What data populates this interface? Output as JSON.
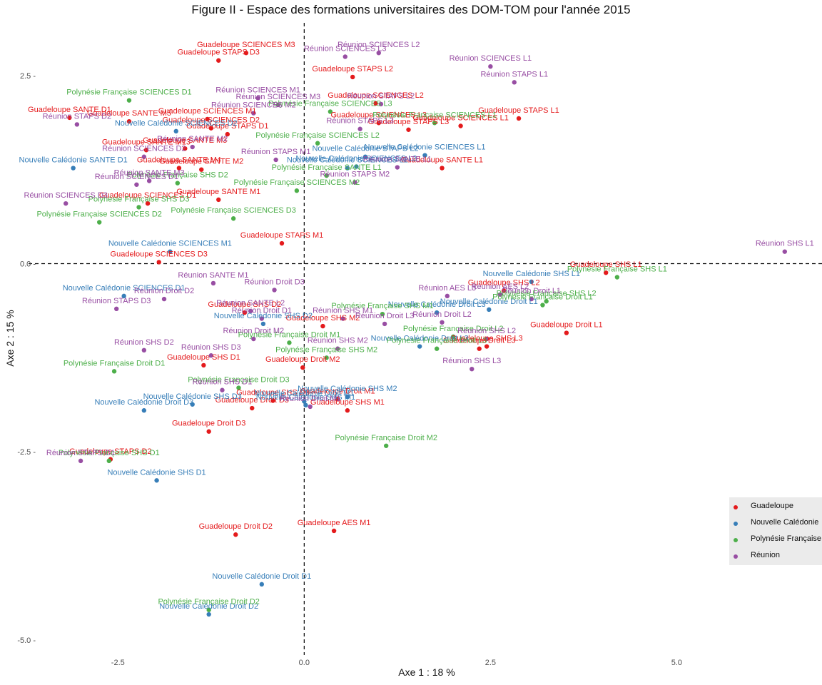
{
  "chart_data": {
    "type": "scatter",
    "title": "Figure II - Espace des formations universitaires des DOM-TOM pour l'année 2015",
    "xlabel": "Axe 1 : 18 %",
    "ylabel": "Axe 2 : 15 %",
    "xlim": [
      -3.7,
      6.95
    ],
    "ylim": [
      -5.2,
      3.2
    ],
    "x_ticks": [
      -2.5,
      0.0,
      2.5,
      5.0
    ],
    "x_tick_labels": [
      "-2.5",
      "0.0",
      "2.5",
      "5.0"
    ],
    "y_ticks": [
      2.5,
      0.0,
      -2.5,
      -5.0
    ],
    "y_tick_labels": [
      "2.5 -",
      "0.0 -",
      "-2.5 -",
      "-5.0 -"
    ],
    "reference_lines": {
      "x": 0,
      "y": 0,
      "style": "dashed"
    },
    "grid": false,
    "legend_position": "right",
    "series": [
      {
        "name": "Guadeloupe",
        "color": "#E41A1C",
        "points": [
          {
            "label": "Guadeloupe SCIENCES M3",
            "x": -0.78,
            "y": 2.8
          },
          {
            "label": "Guadeloupe STAPS D3",
            "x": -1.15,
            "y": 2.7
          },
          {
            "label": "Guadeloupe STAPS L2",
            "x": 0.65,
            "y": 2.48
          },
          {
            "label": "Guadeloupe SCIENCES L2",
            "x": 0.96,
            "y": 2.13
          },
          {
            "label": "Guadeloupe SCIENCES M1",
            "x": -1.3,
            "y": 1.92
          },
          {
            "label": "Guadeloupe SANTE D1",
            "x": -3.15,
            "y": 1.94
          },
          {
            "label": "Guadeloupe SANTE M5",
            "x": -2.35,
            "y": 1.89
          },
          {
            "label": "Guadeloupe SCIENCES D2",
            "x": -1.25,
            "y": 1.8
          },
          {
            "label": "Guadeloupe SCIENCES L3",
            "x": 1.0,
            "y": 1.87
          },
          {
            "label": "Guadeloupe STAPS L1",
            "x": 2.88,
            "y": 1.93
          },
          {
            "label": "Guadeloupe STAPS L3",
            "x": 1.4,
            "y": 1.78
          },
          {
            "label": "Guadeloupe SCIENCES L1",
            "x": 2.1,
            "y": 1.83
          },
          {
            "label": "Guadeloupe STAPS D1",
            "x": -1.03,
            "y": 1.72
          },
          {
            "label": "Guadeloupe SANTE M13",
            "x": -2.12,
            "y": 1.51
          },
          {
            "label": "Guadeloupe SANTE M3",
            "x": -1.6,
            "y": 1.53
          },
          {
            "label": "Guadeloupe SANTE M4",
            "x": -1.68,
            "y": 1.27
          },
          {
            "label": "Guadeloupe SANTE L1",
            "x": 1.85,
            "y": 1.27
          },
          {
            "label": "Guadeloupe SANTE M2",
            "x": -1.38,
            "y": 1.25
          },
          {
            "label": "Guadeloupe SCIENCES D1",
            "x": -2.1,
            "y": 0.8
          },
          {
            "label": "Guadeloupe SANTE M1",
            "x": -1.15,
            "y": 0.85
          },
          {
            "label": "Guadeloupe STAPS M1",
            "x": -0.3,
            "y": 0.27
          },
          {
            "label": "Guadeloupe SCIENCES D3",
            "x": -1.95,
            "y": 0.02
          },
          {
            "label": "Guadeloupe SHS L1",
            "x": 4.05,
            "y": -0.12
          },
          {
            "label": "Guadeloupe SHS L2",
            "x": 2.68,
            "y": -0.36
          },
          {
            "label": "Guadeloupe SHS D2",
            "x": -0.8,
            "y": -0.65
          },
          {
            "label": "Guadeloupe SHS M2",
            "x": 0.25,
            "y": -0.83
          },
          {
            "label": "Guadeloupe Droit L1",
            "x": 3.52,
            "y": -0.92
          },
          {
            "label": "Guadeloupe SHS L3",
            "x": 2.45,
            "y": -1.1
          },
          {
            "label": "Guadeloupe Droit L3",
            "x": 2.35,
            "y": -1.13
          },
          {
            "label": "Guadeloupe SHS D1",
            "x": -1.35,
            "y": -1.35
          },
          {
            "label": "Guadeloupe Droit M2",
            "x": -0.02,
            "y": -1.38
          },
          {
            "label": "Guadeloupe Droit M1",
            "x": 0.45,
            "y": -1.8
          },
          {
            "label": "Guadeloupe SHS D3",
            "x": -0.42,
            "y": -1.82
          },
          {
            "label": "Guadeloupe SHS M1",
            "x": 0.58,
            "y": -1.95
          },
          {
            "label": "Guadeloupe Droit D3",
            "x": -0.7,
            "y": -1.92
          },
          {
            "label": "Guadeloupe Droit D3",
            "x": -1.28,
            "y": -2.23
          },
          {
            "label": "Guadeloupe STAPS D2",
            "x": -2.6,
            "y": -2.6
          },
          {
            "label": "Guadeloupe Droit D2",
            "x": -0.92,
            "y": -3.6
          },
          {
            "label": "Guadeloupe AES M1",
            "x": 0.4,
            "y": -3.55
          }
        ]
      },
      {
        "name": "Nouvelle Calédonie",
        "color": "#377EB8",
        "points": [
          {
            "label": "Nouvelle Calédonie SCIENCES D2",
            "x": -1.72,
            "y": 1.76
          },
          {
            "label": "Nouvelle Calédonie SCIENCES L1",
            "x": 1.62,
            "y": 1.44
          },
          {
            "label": "Nouvelle Calédonie STAPS L2",
            "x": 0.82,
            "y": 1.42
          },
          {
            "label": "Nouvelle Calédonie SCIENCES L3",
            "x": 0.7,
            "y": 1.29
          },
          {
            "label": "Nouvelle Calédonie SANTE D1",
            "x": -3.1,
            "y": 1.27
          },
          {
            "label": "Nouvelle Calédonie SCIENCES L2",
            "x": 0.58,
            "y": 1.27
          },
          {
            "label": "Nouvelle Calédonie SCIENCES M1",
            "x": -1.8,
            "y": 0.16
          },
          {
            "label": "Nouvelle Calédonie SHS L1",
            "x": 3.05,
            "y": -0.24
          },
          {
            "label": "Nouvelle Calédonie SCIENCES D1",
            "x": -2.42,
            "y": -0.43
          },
          {
            "label": "Nouvelle Calédonie Droit L1",
            "x": 2.48,
            "y": -0.61
          },
          {
            "label": "Nouvelle Calédonie Droit L3",
            "x": 1.78,
            "y": -0.65
          },
          {
            "label": "Nouvelle Calédonie SHS D2",
            "x": -0.55,
            "y": -0.8
          },
          {
            "label": "Nouvelle Calédonie Droit L3",
            "x": 1.55,
            "y": -1.1
          },
          {
            "label": "Nouvelle Calédonie SHS M2",
            "x": 0.58,
            "y": -1.77
          },
          {
            "label": "Nouvelle Calédonie Droit M1",
            "x": 0.0,
            "y": -1.83
          },
          {
            "label": "Nouvelle Calédonie Droit D3",
            "x": -2.15,
            "y": -1.95
          },
          {
            "label": "Nouvelle Calédonie SHS D3",
            "x": -1.5,
            "y": -1.87
          },
          {
            "label": "Nouvelle Calédonie SHS M1",
            "x": 0.02,
            "y": -1.88
          },
          {
            "label": "Nouvelle Calédonie SHS D1",
            "x": -1.98,
            "y": -2.88
          },
          {
            "label": "Nouvelle Calédonie Droit D1",
            "x": -0.57,
            "y": -4.26
          },
          {
            "label": "Nouvelle Calédonie Droit D2",
            "x": -1.28,
            "y": -4.66
          }
        ]
      },
      {
        "name": "Polynésie Française",
        "color": "#4DAF4A",
        "points": [
          {
            "label": "Polynésie Française SCIENCES D1",
            "x": -2.35,
            "y": 2.17
          },
          {
            "label": "Polynésie Française SCIENCES L3",
            "x": 0.35,
            "y": 2.02
          },
          {
            "label": "Polynésie Française SCIENCES L1",
            "x": 1.75,
            "y": 1.87
          },
          {
            "label": "Polynésie Française SCIENCES L2",
            "x": 0.18,
            "y": 1.6
          },
          {
            "label": "Polynésie Française SANTE L1",
            "x": 0.3,
            "y": 1.17
          },
          {
            "label": "Polynésie Française SHS D2",
            "x": -1.7,
            "y": 1.07
          },
          {
            "label": "Polynésie Française SCIENCES M2",
            "x": -0.1,
            "y": 0.97
          },
          {
            "label": "Polynésie Française SHS D3",
            "x": -2.22,
            "y": 0.75
          },
          {
            "label": "Polynésie Française SCIENCES D3",
            "x": -0.95,
            "y": 0.6
          },
          {
            "label": "Polynésie Française SCIENCES D2",
            "x": -2.75,
            "y": 0.55
          },
          {
            "label": "Polynésie Française SHS L1",
            "x": 4.2,
            "y": -0.18
          },
          {
            "label": "Polynésie Française SHS L2",
            "x": 3.25,
            "y": -0.5
          },
          {
            "label": "Polynésie Française Droit L1",
            "x": 3.2,
            "y": -0.55
          },
          {
            "label": "Polynésie Française SHS M1",
            "x": 1.05,
            "y": -0.67
          },
          {
            "label": "Polynésie Française Droit L2",
            "x": 2.0,
            "y": -0.97
          },
          {
            "label": "Polynésie Française Droit M1",
            "x": -0.2,
            "y": -1.05
          },
          {
            "label": "Polynésie Française Droit L3",
            "x": 1.78,
            "y": -1.13
          },
          {
            "label": "Polynésie Française SHS M2",
            "x": 0.3,
            "y": -1.25
          },
          {
            "label": "Polynésie Française Droit D1",
            "x": -2.55,
            "y": -1.43
          },
          {
            "label": "Polynésie Française Droit D3",
            "x": -0.88,
            "y": -1.65
          },
          {
            "label": "Polynésie Française Droit M2",
            "x": 1.1,
            "y": -2.42
          },
          {
            "label": "Polynésie Française SHS D1",
            "x": -2.62,
            "y": -2.62
          },
          {
            "label": "Polynésie Française Droit D2",
            "x": -1.28,
            "y": -4.6
          }
        ]
      },
      {
        "name": "Réunion",
        "color": "#984EA3",
        "points": [
          {
            "label": "Réunion SCIENCES L2",
            "x": 1.0,
            "y": 2.8
          },
          {
            "label": "Réunion SCIENCES L3",
            "x": 0.55,
            "y": 2.75
          },
          {
            "label": "Réunion SCIENCES L1",
            "x": 2.5,
            "y": 2.62
          },
          {
            "label": "Réunion STAPS L1",
            "x": 2.82,
            "y": 2.41
          },
          {
            "label": "Réunion SCIENCES M1",
            "x": -0.62,
            "y": 2.2
          },
          {
            "label": "Réunion STAPS L2",
            "x": 1.03,
            "y": 2.12
          },
          {
            "label": "Réunion SCIENCES M3",
            "x": -0.35,
            "y": 2.11
          },
          {
            "label": "Réunion SCIENCES M2",
            "x": -0.68,
            "y": 2.0
          },
          {
            "label": "Réunion STAPS D2",
            "x": -3.05,
            "y": 1.85
          },
          {
            "label": "Réunion STAPS L3",
            "x": 0.75,
            "y": 1.79
          },
          {
            "label": "Réunion SANTE M2",
            "x": -1.5,
            "y": 1.55
          },
          {
            "label": "Réunion SCIENCES D2",
            "x": -2.15,
            "y": 1.42
          },
          {
            "label": "Réunion SANTE L1",
            "x": 1.25,
            "y": 1.28
          },
          {
            "label": "Réunion STAPS M1",
            "x": -0.38,
            "y": 1.38
          },
          {
            "label": "Réunion SANTE M3",
            "x": -2.08,
            "y": 1.1
          },
          {
            "label": "Réunion STAPS M2",
            "x": 0.68,
            "y": 1.08
          },
          {
            "label": "Réunion SCIENCES D1",
            "x": -2.25,
            "y": 1.05
          },
          {
            "label": "Réunion SCIENCES D3",
            "x": -3.2,
            "y": 0.8
          },
          {
            "label": "Réunion SHS L1",
            "x": 6.45,
            "y": 0.16
          },
          {
            "label": "Réunion SANTE M1",
            "x": -1.22,
            "y": -0.26
          },
          {
            "label": "Réunion AES L3",
            "x": 1.92,
            "y": -0.43
          },
          {
            "label": "Réunion Droit L1",
            "x": 3.05,
            "y": -0.47
          },
          {
            "label": "Réunion Droit D2",
            "x": -1.88,
            "y": -0.47
          },
          {
            "label": "Réunion Droit D3",
            "x": -0.4,
            "y": -0.35
          },
          {
            "label": "Réunion AES L2",
            "x": 2.63,
            "y": -0.41
          },
          {
            "label": "Réunion SANTE L2",
            "x": -0.72,
            "y": -0.63
          },
          {
            "label": "Réunion STAPS D3",
            "x": -2.52,
            "y": -0.6
          },
          {
            "label": "Réunion Droit D1",
            "x": -0.57,
            "y": -0.73
          },
          {
            "label": "Réunion SHS M1",
            "x": 0.52,
            "y": -0.73
          },
          {
            "label": "Réunion Droit L2",
            "x": 1.85,
            "y": -0.78
          },
          {
            "label": "Réunion Droit L3",
            "x": 1.08,
            "y": -0.8
          },
          {
            "label": "Réunion SHS L2",
            "x": 2.45,
            "y": -1.0
          },
          {
            "label": "Réunion Droit M2",
            "x": -0.68,
            "y": -1.0
          },
          {
            "label": "Réunion SHS D2",
            "x": -2.15,
            "y": -1.15
          },
          {
            "label": "Réunion SHS M2",
            "x": 0.45,
            "y": -1.13
          },
          {
            "label": "Réunion SHS D3",
            "x": -1.25,
            "y": -1.22
          },
          {
            "label": "Réunion SHS L3",
            "x": 2.25,
            "y": -1.4
          },
          {
            "label": "Réunion SHS D1",
            "x": -1.1,
            "y": -1.68
          },
          {
            "label": "Réunion Droit M1",
            "x": 0.08,
            "y": -1.9
          },
          {
            "label": "Réunion STAPS D1",
            "x": -3.0,
            "y": -2.62
          }
        ]
      }
    ]
  }
}
